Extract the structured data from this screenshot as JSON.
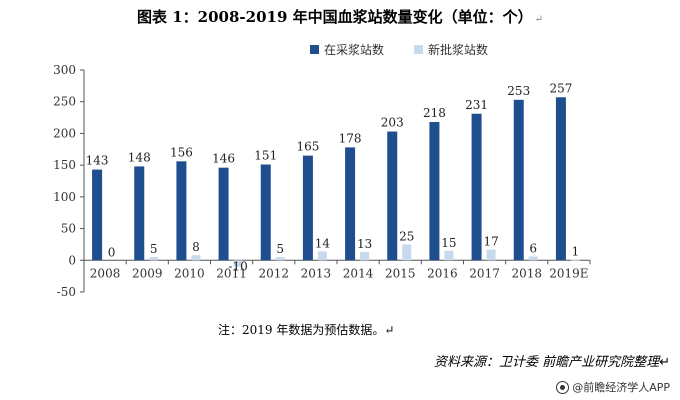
{
  "title": "图表 1：2008-2019 年中国血浆站数量变化（单位：个）",
  "return_mark": "↵",
  "note": "注：2019 年数据为预估数据。↵",
  "source": "资料来源：卫计委 前瞻产业研究院整理↵",
  "watermark": "@前瞻经济学人APP",
  "chart_data": {
    "type": "bar",
    "title": "",
    "xlabel": "",
    "ylabel": "",
    "categories": [
      "2008",
      "2009",
      "2010",
      "2011",
      "2012",
      "2013",
      "2014",
      "2015",
      "2016",
      "2017",
      "2018",
      "2019E"
    ],
    "series": [
      {
        "name": "在采浆站数",
        "color": "#1f4e8f",
        "values": [
          143,
          148,
          156,
          146,
          151,
          165,
          178,
          203,
          218,
          231,
          253,
          257
        ]
      },
      {
        "name": "新批浆站数",
        "color": "#c7d9ec",
        "values": [
          0,
          5,
          8,
          -10,
          5,
          14,
          13,
          25,
          15,
          17,
          6,
          1
        ]
      }
    ],
    "ylim": [
      -50,
      300
    ],
    "yticks": [
      -50,
      0,
      50,
      100,
      150,
      200,
      250,
      300
    ],
    "grid": false,
    "legend_position": "top-right"
  }
}
